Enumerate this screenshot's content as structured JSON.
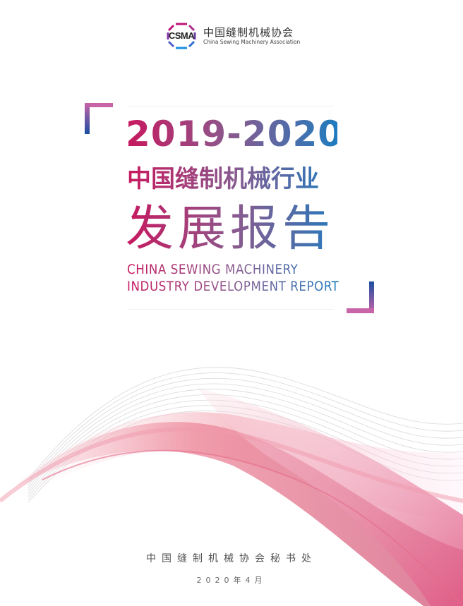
{
  "logo": {
    "mark": "CSMA",
    "name_cn": "中国缝制机械协会",
    "name_en": "China Sewing Machinery Association"
  },
  "title": {
    "year": "2019-2020",
    "line_cn1": "中国缝制机械行业",
    "line_cn2": "发展报告",
    "line_en1": "CHINA SEWING MACHINERY",
    "line_en2": "INDUSTRY DEVELOPMENT REPORT"
  },
  "footer": {
    "publisher": "中国缝制机械协会秘书处",
    "date": "2020年4月"
  },
  "colors": {
    "gradient_start": "#c8185f",
    "gradient_mid": "#8a5a8e",
    "gradient_end": "#1f7cbf",
    "wave_pink": "#e8829a"
  }
}
